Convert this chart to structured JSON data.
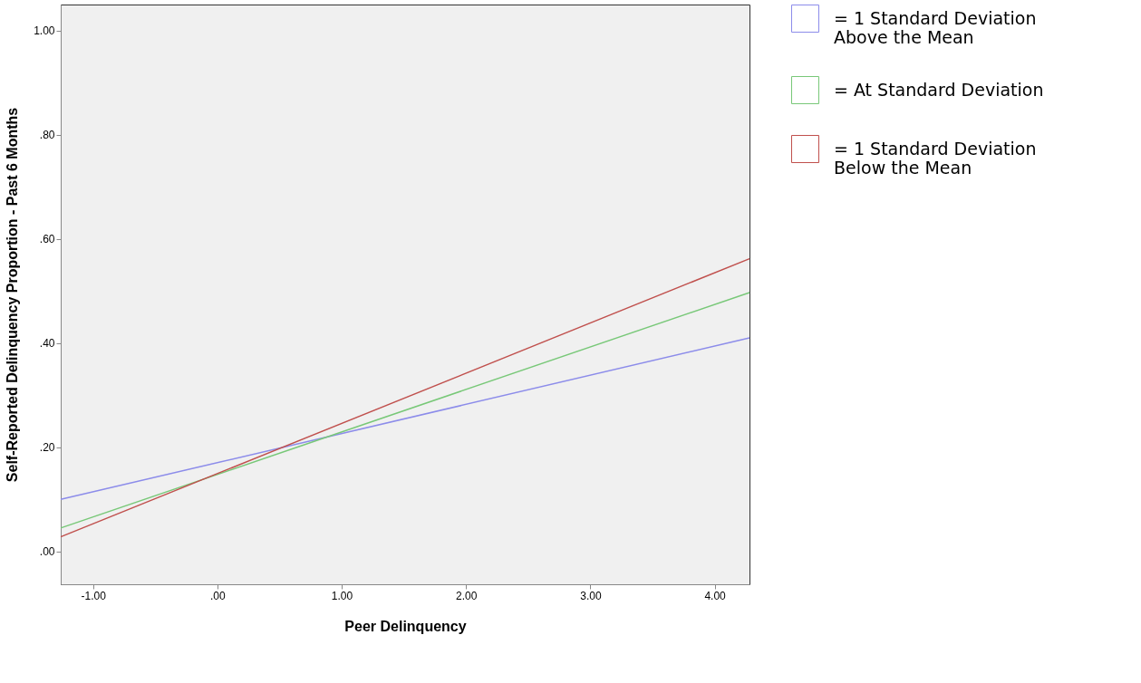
{
  "chart_data": {
    "type": "line",
    "xlabel": "Peer Delinquency",
    "ylabel": "Self-Reported Delinquency Proportion - Past 6 Months",
    "x": [
      -1.26,
      4.28
    ],
    "series": [
      {
        "name": "= 1 Standard Deviation\nAbove the Mean",
        "color": "#8c8cea",
        "values": [
          0.1,
          0.41
        ]
      },
      {
        "name": "= At Standard Deviation",
        "color": "#78c878",
        "values": [
          0.045,
          0.497
        ]
      },
      {
        "name": "= 1 Standard Deviation\nBelow the Mean",
        "color": "#c0504d",
        "values": [
          0.028,
          0.562
        ]
      }
    ],
    "xlim": [
      -1.26,
      4.28
    ],
    "ylim": [
      -0.063,
      1.05
    ],
    "xticks": [
      {
        "value": -1,
        "label": "-1.00"
      },
      {
        "value": 0,
        "label": ".00"
      },
      {
        "value": 1,
        "label": "1.00"
      },
      {
        "value": 2,
        "label": "2.00"
      },
      {
        "value": 3,
        "label": "3.00"
      },
      {
        "value": 4,
        "label": "4.00"
      }
    ],
    "yticks": [
      {
        "value": 0,
        "label": ".00"
      },
      {
        "value": 0.2,
        "label": ".20"
      },
      {
        "value": 0.4,
        "label": ".40"
      },
      {
        "value": 0.6,
        "label": ".60"
      },
      {
        "value": 0.8,
        "label": ".80"
      },
      {
        "value": 1,
        "label": "1.00"
      }
    ],
    "grid": false,
    "legend": "right",
    "marker": "none",
    "line_style": "solid"
  }
}
